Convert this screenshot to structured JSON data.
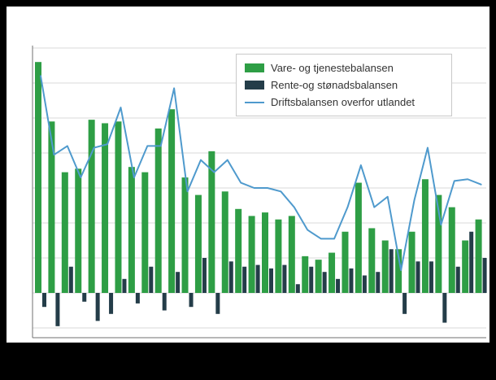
{
  "canvas": {
    "background": "#000000",
    "chart_background": "#ffffff",
    "gridline_color": "#d9d9d9",
    "axis_color": "#707070"
  },
  "legend": {
    "items": [
      {
        "label": "Vare- og tjenestebalansen",
        "color": "#2e9e45",
        "swatch": "bar"
      },
      {
        "label": "Rente-og stønadsbalansen",
        "color": "#243d49",
        "swatch": "bar"
      },
      {
        "label": "Driftsbalansen overfor utlandet",
        "color": "#4f9acd",
        "swatch": "line"
      }
    ]
  },
  "chart_data": {
    "type": "combo",
    "title": "",
    "xlabel": "",
    "ylabel": "",
    "n_points": 34,
    "x_tick_labels": [],
    "y_tick_labels": [],
    "grid": true,
    "grid_step": 20,
    "ylim": [
      -26,
      141
    ],
    "legend_position": "top-right",
    "series": [
      {
        "name": "Vare- og tjenestebalansen",
        "type": "bar",
        "color": "#2e9e45",
        "values": [
          132,
          98,
          69,
          71,
          99,
          97,
          98,
          72,
          69,
          94,
          105,
          66,
          56,
          81,
          58,
          48,
          44,
          46,
          42,
          44,
          21,
          19,
          23,
          35,
          63,
          37,
          30,
          25,
          35,
          65,
          56,
          49,
          30,
          42
        ]
      },
      {
        "name": "Rente-og stønadsbalansen",
        "type": "bar",
        "color": "#243d49",
        "values": [
          -8,
          -19,
          15,
          -5,
          -16,
          -12,
          8,
          -6,
          15,
          -10,
          12,
          -8,
          20,
          -12,
          18,
          15,
          16,
          14,
          16,
          5,
          15,
          12,
          8,
          14,
          10,
          12,
          25,
          -12,
          18,
          18,
          -17,
          15,
          35,
          20
        ]
      },
      {
        "name": "Driftsbalansen overfor utlandet",
        "type": "line",
        "color": "#4f9acd",
        "values": [
          124,
          79,
          84,
          66,
          83,
          85,
          106,
          66,
          84,
          84,
          117,
          58,
          76,
          69,
          76,
          63,
          60,
          60,
          58,
          49,
          36,
          31,
          31,
          49,
          73,
          49,
          55,
          13,
          53,
          83,
          39,
          64,
          65,
          62
        ]
      }
    ]
  }
}
